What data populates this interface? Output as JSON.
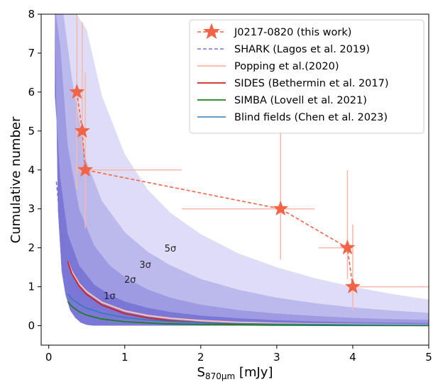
{
  "chart_data": {
    "type": "line",
    "xlabel_main": "S",
    "xlabel_sub": "870μm",
    "xlabel_unit": " [mJy]",
    "ylabel": "Cumulative number",
    "xlim": [
      -0.1,
      5.0
    ],
    "ylim": [
      -0.5,
      8.0
    ],
    "xticks": [
      0,
      1,
      2,
      3,
      4,
      5
    ],
    "yticks": [
      0,
      1,
      2,
      3,
      4,
      5,
      6,
      7,
      8
    ],
    "grid": false,
    "legend_position": "top-right",
    "colors": {
      "band_1": "#7b77d7",
      "band_2": "#9f9be2",
      "band_3": "#bcb9ec",
      "band_5": "#dedcf6",
      "popping": "#f9c0b4",
      "this_work": "#f26448",
      "this_work_err": "#f7b7a9",
      "shark": "#7d73cc",
      "sides": "#d21f1f",
      "simba": "#1d7f1d",
      "blind": "#2f7db5"
    },
    "bands": [
      {
        "label": "5σ",
        "label_xy": [
          1.6,
          1.9
        ],
        "upper": [
          [
            0.08,
            8.2
          ],
          [
            0.3,
            8.2
          ],
          [
            0.5,
            7.6
          ],
          [
            0.7,
            5.9
          ],
          [
            1.0,
            4.4
          ],
          [
            1.3,
            3.5
          ],
          [
            1.6,
            2.9
          ],
          [
            2.0,
            2.35
          ],
          [
            2.5,
            1.85
          ],
          [
            3.0,
            1.5
          ],
          [
            3.5,
            1.22
          ],
          [
            4.0,
            1.0
          ],
          [
            4.5,
            0.82
          ],
          [
            5.0,
            0.67
          ]
        ]
      },
      {
        "label": "3σ",
        "label_xy": [
          1.27,
          1.48
        ],
        "upper": [
          [
            0.08,
            8.2
          ],
          [
            0.18,
            8.2
          ],
          [
            0.3,
            6.4
          ],
          [
            0.5,
            4.2
          ],
          [
            0.7,
            3.2
          ],
          [
            1.0,
            2.4
          ],
          [
            1.3,
            1.9
          ],
          [
            1.6,
            1.55
          ],
          [
            2.0,
            1.2
          ],
          [
            2.5,
            0.92
          ],
          [
            3.0,
            0.72
          ],
          [
            3.5,
            0.58
          ],
          [
            4.0,
            0.47
          ],
          [
            4.5,
            0.39
          ],
          [
            5.0,
            0.33
          ]
        ]
      },
      {
        "label": "2σ",
        "label_xy": [
          1.07,
          1.1
        ],
        "upper": [
          [
            0.08,
            8.2
          ],
          [
            0.15,
            7.2
          ],
          [
            0.25,
            4.6
          ],
          [
            0.4,
            3.0
          ],
          [
            0.6,
            2.05
          ],
          [
            0.8,
            1.55
          ],
          [
            1.0,
            1.25
          ],
          [
            1.3,
            0.93
          ],
          [
            1.6,
            0.72
          ],
          [
            2.0,
            0.54
          ],
          [
            2.5,
            0.4
          ],
          [
            3.0,
            0.31
          ],
          [
            3.5,
            0.25
          ],
          [
            4.0,
            0.2
          ],
          [
            4.5,
            0.17
          ],
          [
            5.0,
            0.15
          ]
        ]
      },
      {
        "label": "1σ",
        "label_xy": [
          0.8,
          0.68
        ],
        "upper": [
          [
            0.08,
            5.9
          ],
          [
            0.15,
            3.8
          ],
          [
            0.25,
            2.35
          ],
          [
            0.4,
            1.55
          ],
          [
            0.6,
            1.05
          ],
          [
            0.8,
            0.8
          ],
          [
            1.0,
            0.62
          ],
          [
            1.3,
            0.46
          ],
          [
            1.6,
            0.35
          ],
          [
            2.0,
            0.26
          ],
          [
            2.5,
            0.19
          ],
          [
            3.0,
            0.14
          ],
          [
            3.5,
            0.11
          ],
          [
            4.0,
            0.09
          ],
          [
            4.5,
            0.08
          ],
          [
            5.0,
            0.07
          ]
        ]
      }
    ],
    "band_lower": [
      [
        0.08,
        8.2
      ],
      [
        0.12,
        3.0
      ],
      [
        0.17,
        1.4
      ],
      [
        0.22,
        0.8
      ],
      [
        0.28,
        0.4
      ],
      [
        0.35,
        0.2
      ],
      [
        0.42,
        0.08
      ],
      [
        0.5,
        0.02
      ],
      [
        0.6,
        0.0
      ],
      [
        5.0,
        0.0
      ]
    ],
    "series": [
      {
        "name": "J0217-0820 (this work)",
        "style": "dashed-star",
        "x": [
          0.37,
          0.44,
          0.48,
          3.05,
          3.93,
          4.0
        ],
        "y": [
          6.0,
          5.0,
          4.0,
          3.0,
          2.0,
          1.0
        ],
        "xerr": [
          [
            0.3,
            0.45
          ],
          [
            0.38,
            0.5
          ],
          [
            0.35,
            1.75
          ],
          [
            1.75,
            3.5
          ],
          [
            3.55,
            3.95
          ],
          [
            3.95,
            5.0
          ]
        ],
        "yerr": [
          [
            3.5,
            8.0
          ],
          [
            4.5,
            7.8
          ],
          [
            2.5,
            6.5
          ],
          [
            1.7,
            5.0
          ],
          [
            1.2,
            4.0
          ],
          [
            0.4,
            2.6
          ]
        ]
      },
      {
        "name": "SHARK (Lagos et al. 2019)",
        "style": "dashed",
        "x": [
          0.1,
          0.13,
          0.16,
          0.2,
          0.25,
          0.3,
          0.4,
          0.5,
          0.7,
          1.0,
          1.5,
          2.0,
          3.0,
          4.0,
          5.0
        ],
        "y": [
          3.7,
          3.1,
          2.5,
          2.0,
          1.6,
          1.3,
          0.92,
          0.72,
          0.46,
          0.28,
          0.15,
          0.09,
          0.04,
          0.02,
          0.01
        ]
      },
      {
        "name": "Popping et al.(2020)",
        "style": "solid",
        "x": [
          0.25,
          0.3,
          0.4,
          0.5,
          0.7,
          1.0,
          1.3,
          1.6,
          2.0,
          2.5,
          3.0,
          3.5,
          4.0,
          4.5,
          5.0
        ],
        "y": [
          1.65,
          1.4,
          1.08,
          0.87,
          0.6,
          0.38,
          0.26,
          0.19,
          0.13,
          0.085,
          0.06,
          0.045,
          0.035,
          0.028,
          0.022
        ]
      },
      {
        "name": "SIDES (Bethermin et al. 2017)",
        "style": "solid",
        "x": [
          0.25,
          0.3,
          0.4,
          0.5,
          0.7,
          1.0,
          1.3,
          1.6,
          2.0,
          2.5,
          3.0,
          3.5,
          4.0,
          4.5,
          5.0
        ],
        "y": [
          1.65,
          1.35,
          1.02,
          0.8,
          0.53,
          0.31,
          0.2,
          0.13,
          0.08,
          0.045,
          0.028,
          0.018,
          0.012,
          0.009,
          0.006
        ]
      },
      {
        "name": "SIMBA (Lovell et al. 2021)",
        "style": "solid",
        "x": [
          0.25,
          0.3,
          0.4,
          0.5,
          0.7,
          1.0,
          1.5,
          2.0,
          3.0,
          4.0,
          5.0
        ],
        "y": [
          0.62,
          0.5,
          0.36,
          0.27,
          0.17,
          0.1,
          0.05,
          0.03,
          0.012,
          0.006,
          0.003
        ]
      },
      {
        "name": "Blind fields (Chen et al. 2023)",
        "style": "solid",
        "x": [
          0.25,
          0.3,
          0.4,
          0.5,
          0.7,
          1.0,
          1.3,
          1.6,
          2.0,
          2.5,
          3.0,
          4.0,
          5.0
        ],
        "y": [
          0.82,
          0.7,
          0.55,
          0.45,
          0.32,
          0.21,
          0.15,
          0.11,
          0.08,
          0.055,
          0.04,
          0.025,
          0.016
        ]
      }
    ]
  }
}
